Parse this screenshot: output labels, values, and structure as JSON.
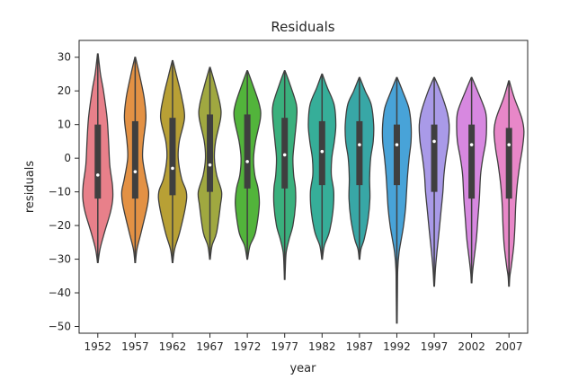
{
  "chart_data": {
    "type": "violin",
    "title": "Residuals",
    "xlabel": "year",
    "ylabel": "residuals",
    "ylim": [
      -52,
      35
    ],
    "yticks": [
      30,
      20,
      10,
      0,
      -10,
      -20,
      -30,
      -40,
      -50
    ],
    "tick_labels_y": [
      "30",
      "20",
      "10",
      "0",
      "−10",
      "−20",
      "−30",
      "−40",
      "−50"
    ],
    "categories": [
      "1952",
      "1957",
      "1962",
      "1967",
      "1972",
      "1977",
      "1982",
      "1987",
      "1992",
      "1997",
      "2002",
      "2007"
    ],
    "series": [
      {
        "name": "1952",
        "color": "#e8808a",
        "min": -31,
        "max": 31,
        "q1": -12,
        "q3": 10,
        "median": -5,
        "profile": [
          [
            31,
            0.02
          ],
          [
            25,
            0.18
          ],
          [
            20,
            0.38
          ],
          [
            12,
            0.62
          ],
          [
            5,
            0.72
          ],
          [
            -2,
            0.8
          ],
          [
            -8,
            0.98
          ],
          [
            -12,
            1.0
          ],
          [
            -16,
            0.85
          ],
          [
            -22,
            0.45
          ],
          [
            -27,
            0.15
          ],
          [
            -31,
            0.02
          ]
        ]
      },
      {
        "name": "1957",
        "color": "#e39144",
        "min": -31,
        "max": 30,
        "q1": -12,
        "q3": 11,
        "median": -4,
        "profile": [
          [
            30,
            0.02
          ],
          [
            25,
            0.28
          ],
          [
            18,
            0.6
          ],
          [
            12,
            0.72
          ],
          [
            5,
            0.55
          ],
          [
            0,
            0.5
          ],
          [
            -6,
            0.72
          ],
          [
            -10,
            0.9
          ],
          [
            -14,
            0.82
          ],
          [
            -22,
            0.4
          ],
          [
            -27,
            0.12
          ],
          [
            -31,
            0.02
          ]
        ]
      },
      {
        "name": "1962",
        "color": "#b8a035",
        "min": -31,
        "max": 29,
        "q1": -11,
        "q3": 12,
        "median": -3,
        "profile": [
          [
            29,
            0.02
          ],
          [
            24,
            0.3
          ],
          [
            18,
            0.62
          ],
          [
            12,
            0.8
          ],
          [
            5,
            0.45
          ],
          [
            0,
            0.38
          ],
          [
            -6,
            0.6
          ],
          [
            -10,
            0.92
          ],
          [
            -14,
            0.88
          ],
          [
            -22,
            0.48
          ],
          [
            -27,
            0.14
          ],
          [
            -31,
            0.02
          ]
        ]
      },
      {
        "name": "1967",
        "color": "#a0a840",
        "min": -30,
        "max": 27,
        "q1": -10,
        "q3": 13,
        "median": -2,
        "profile": [
          [
            27,
            0.02
          ],
          [
            22,
            0.34
          ],
          [
            16,
            0.68
          ],
          [
            12,
            0.72
          ],
          [
            5,
            0.38
          ],
          [
            0,
            0.3
          ],
          [
            -5,
            0.45
          ],
          [
            -10,
            0.78
          ],
          [
            -14,
            0.7
          ],
          [
            -22,
            0.45
          ],
          [
            -26,
            0.14
          ],
          [
            -30,
            0.02
          ]
        ]
      },
      {
        "name": "1972",
        "color": "#52b43b",
        "min": -30,
        "max": 26,
        "q1": -9,
        "q3": 13,
        "median": -1,
        "profile": [
          [
            26,
            0.02
          ],
          [
            22,
            0.35
          ],
          [
            16,
            0.8
          ],
          [
            12,
            0.88
          ],
          [
            5,
            0.55
          ],
          [
            0,
            0.42
          ],
          [
            -5,
            0.5
          ],
          [
            -9,
            0.72
          ],
          [
            -14,
            0.8
          ],
          [
            -22,
            0.55
          ],
          [
            -26,
            0.18
          ],
          [
            -30,
            0.02
          ]
        ]
      },
      {
        "name": "1977",
        "color": "#3ab07d",
        "min": -36,
        "max": 26,
        "q1": -9,
        "q3": 12,
        "median": 1,
        "profile": [
          [
            26,
            0.02
          ],
          [
            22,
            0.35
          ],
          [
            16,
            0.78
          ],
          [
            12,
            0.8
          ],
          [
            5,
            0.65
          ],
          [
            0,
            0.55
          ],
          [
            -5,
            0.6
          ],
          [
            -9,
            0.72
          ],
          [
            -14,
            0.72
          ],
          [
            -20,
            0.55
          ],
          [
            -24,
            0.3
          ],
          [
            -28,
            0.1
          ],
          [
            -33,
            0.04
          ],
          [
            -36,
            0.02
          ]
        ]
      },
      {
        "name": "1982",
        "color": "#36ae99",
        "min": -30,
        "max": 25,
        "q1": -8,
        "q3": 11,
        "median": 2,
        "profile": [
          [
            25,
            0.02
          ],
          [
            21,
            0.35
          ],
          [
            16,
            0.8
          ],
          [
            10,
            0.92
          ],
          [
            5,
            0.82
          ],
          [
            0,
            0.65
          ],
          [
            -5,
            0.62
          ],
          [
            -10,
            0.78
          ],
          [
            -16,
            0.72
          ],
          [
            -22,
            0.48
          ],
          [
            -26,
            0.15
          ],
          [
            -30,
            0.02
          ]
        ]
      },
      {
        "name": "1987",
        "color": "#38a7a6",
        "min": -30,
        "max": 24,
        "q1": -8,
        "q3": 11,
        "median": 4,
        "profile": [
          [
            24,
            0.02
          ],
          [
            20,
            0.38
          ],
          [
            16,
            0.78
          ],
          [
            10,
            0.95
          ],
          [
            5,
            0.92
          ],
          [
            0,
            0.75
          ],
          [
            -6,
            0.68
          ],
          [
            -12,
            0.7
          ],
          [
            -18,
            0.58
          ],
          [
            -24,
            0.32
          ],
          [
            -27,
            0.1
          ],
          [
            -30,
            0.02
          ]
        ]
      },
      {
        "name": "1992",
        "color": "#48a3d8",
        "min": -49,
        "max": 24,
        "q1": -8,
        "q3": 10,
        "median": 4,
        "profile": [
          [
            24,
            0.02
          ],
          [
            20,
            0.38
          ],
          [
            15,
            0.8
          ],
          [
            10,
            0.95
          ],
          [
            5,
            0.95
          ],
          [
            0,
            0.82
          ],
          [
            -5,
            0.72
          ],
          [
            -10,
            0.65
          ],
          [
            -15,
            0.58
          ],
          [
            -20,
            0.45
          ],
          [
            -24,
            0.3
          ],
          [
            -28,
            0.15
          ],
          [
            -33,
            0.06
          ],
          [
            -40,
            0.04
          ],
          [
            -49,
            0.02
          ]
        ]
      },
      {
        "name": "1997",
        "color": "#a99ae8",
        "min": -38,
        "max": 24,
        "q1": -10,
        "q3": 10,
        "median": 5,
        "profile": [
          [
            24,
            0.02
          ],
          [
            20,
            0.4
          ],
          [
            14,
            0.85
          ],
          [
            10,
            1.0
          ],
          [
            5,
            0.95
          ],
          [
            0,
            0.78
          ],
          [
            -5,
            0.65
          ],
          [
            -10,
            0.58
          ],
          [
            -16,
            0.45
          ],
          [
            -22,
            0.32
          ],
          [
            -28,
            0.18
          ],
          [
            -33,
            0.08
          ],
          [
            -38,
            0.02
          ]
        ]
      },
      {
        "name": "2002",
        "color": "#d788e0",
        "min": -37,
        "max": 24,
        "q1": -12,
        "q3": 10,
        "median": 4,
        "profile": [
          [
            24,
            0.02
          ],
          [
            20,
            0.4
          ],
          [
            14,
            0.92
          ],
          [
            10,
            1.0
          ],
          [
            5,
            0.95
          ],
          [
            0,
            0.75
          ],
          [
            -5,
            0.6
          ],
          [
            -12,
            0.52
          ],
          [
            -18,
            0.42
          ],
          [
            -24,
            0.32
          ],
          [
            -30,
            0.16
          ],
          [
            -34,
            0.06
          ],
          [
            -37,
            0.02
          ]
        ]
      },
      {
        "name": "2007",
        "color": "#e887c8",
        "min": -38,
        "max": 23,
        "q1": -12,
        "q3": 9,
        "median": 4,
        "profile": [
          [
            23,
            0.02
          ],
          [
            18,
            0.35
          ],
          [
            12,
            0.85
          ],
          [
            8,
            1.0
          ],
          [
            3,
            0.9
          ],
          [
            -2,
            0.72
          ],
          [
            -8,
            0.55
          ],
          [
            -14,
            0.45
          ],
          [
            -20,
            0.4
          ],
          [
            -26,
            0.32
          ],
          [
            -32,
            0.16
          ],
          [
            -35,
            0.06
          ],
          [
            -38,
            0.02
          ]
        ]
      }
    ]
  }
}
